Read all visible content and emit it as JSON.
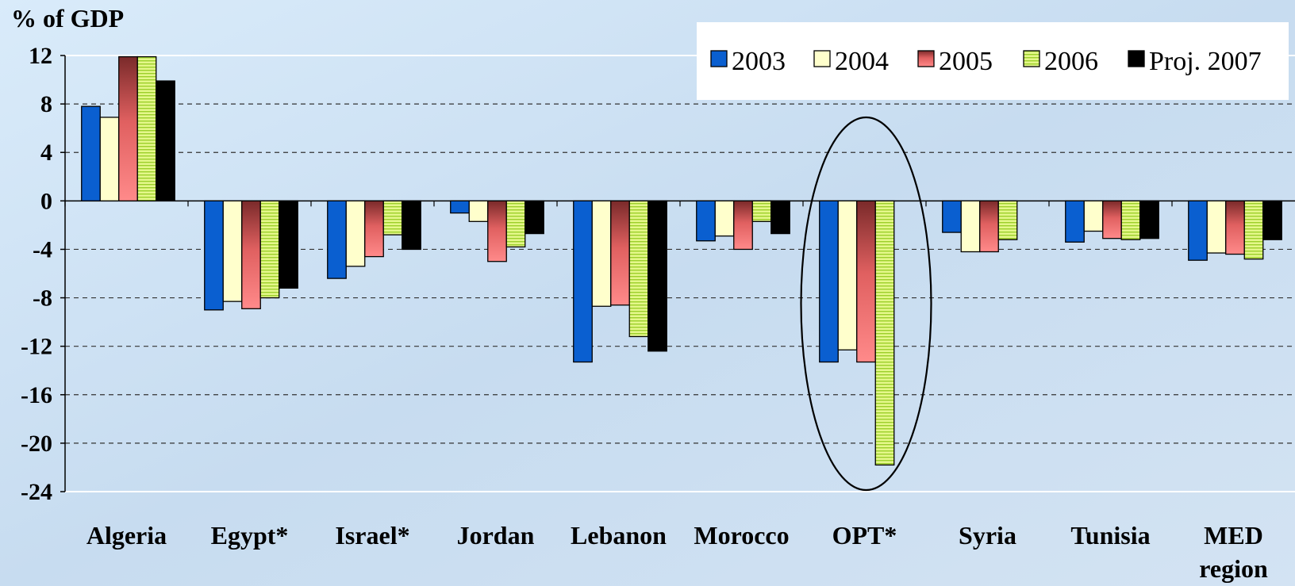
{
  "chart_data": {
    "type": "bar",
    "ylabel": "% of GDP",
    "ylim": [
      -24,
      12
    ],
    "yticks": [
      12,
      8,
      4,
      0,
      -4,
      -8,
      -12,
      -16,
      -20,
      -24
    ],
    "grid": "dashed horizontal",
    "legend_position": "top-right",
    "categories": [
      "Algeria",
      "Egypt*",
      "Israel*",
      "Jordan",
      "Lebanon",
      "Morocco",
      "OPT*",
      "Syria",
      "Tunisia",
      "MED region"
    ],
    "series": [
      {
        "name": "2003",
        "color": "#0a5fd0",
        "values": [
          7.8,
          -9.0,
          -6.4,
          -1.0,
          -13.3,
          -3.3,
          -13.3,
          -2.6,
          -3.4,
          -4.9
        ]
      },
      {
        "name": "2004",
        "color": "#ffffcc",
        "values": [
          6.9,
          -8.3,
          -5.4,
          -1.7,
          -8.7,
          -2.9,
          -12.3,
          -4.2,
          -2.5,
          -4.3
        ]
      },
      {
        "name": "2005",
        "color": "#f07070",
        "values": [
          11.9,
          -8.9,
          -4.6,
          -5.0,
          -8.6,
          -4.0,
          -13.3,
          -4.2,
          -3.1,
          -4.4
        ]
      },
      {
        "name": "2006",
        "color": "#d8f07a",
        "values": [
          11.9,
          -8.0,
          -2.8,
          -3.8,
          -11.2,
          -1.7,
          -21.8,
          -3.2,
          -3.2,
          -4.8
        ]
      },
      {
        "name": "Proj. 2007",
        "color": "#000000",
        "values": [
          9.9,
          -7.2,
          -4.0,
          -2.7,
          -12.4,
          -2.7,
          null,
          null,
          -3.1,
          -3.2
        ]
      }
    ],
    "highlight": "OPT*"
  }
}
